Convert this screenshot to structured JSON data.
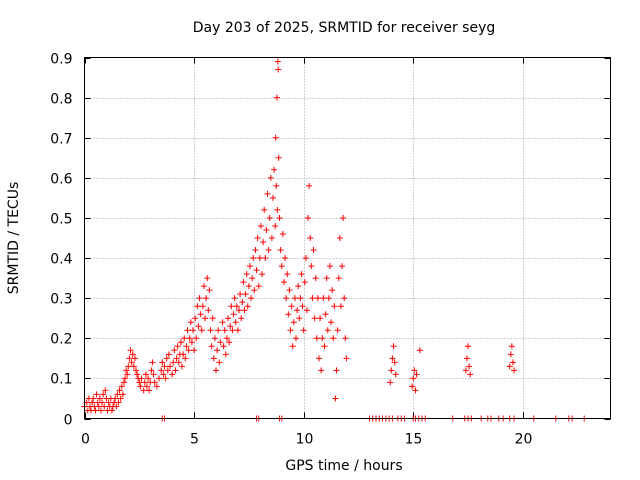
{
  "chart_data": {
    "type": "scatter",
    "title": "Day 203 of 2025, SRMTID for receiver seyg",
    "xlabel": "GPS time / hours",
    "ylabel": "SRMTID / TECUs",
    "xlim": [
      0,
      24
    ],
    "ylim": [
      0,
      0.9
    ],
    "xticks": [
      0,
      5,
      10,
      15,
      20
    ],
    "yticks": [
      0,
      0.1,
      0.2,
      0.3,
      0.4,
      0.5,
      0.6,
      0.7,
      0.8,
      0.9
    ],
    "grid": true,
    "marker": "plus",
    "color": "#ff0000",
    "series": [
      {
        "name": "SRMTID",
        "points": [
          [
            0.0,
            0.03
          ],
          [
            0.1,
            0.04
          ],
          [
            0.15,
            0.02
          ],
          [
            0.2,
            0.05
          ],
          [
            0.25,
            0.03
          ],
          [
            0.3,
            0.02
          ],
          [
            0.35,
            0.04
          ],
          [
            0.4,
            0.05
          ],
          [
            0.45,
            0.03
          ],
          [
            0.5,
            0.02
          ],
          [
            0.55,
            0.06
          ],
          [
            0.6,
            0.04
          ],
          [
            0.65,
            0.03
          ],
          [
            0.7,
            0.05
          ],
          [
            0.75,
            0.02
          ],
          [
            0.8,
            0.04
          ],
          [
            0.85,
            0.06
          ],
          [
            0.9,
            0.03
          ],
          [
            0.95,
            0.07
          ],
          [
            1.0,
            0.05
          ],
          [
            1.05,
            0.02
          ],
          [
            1.1,
            0.04
          ],
          [
            1.15,
            0.03
          ],
          [
            1.2,
            0.05
          ],
          [
            1.25,
            0.02
          ],
          [
            1.3,
            0.03
          ],
          [
            1.35,
            0.04
          ],
          [
            1.4,
            0.05
          ],
          [
            1.45,
            0.03
          ],
          [
            1.5,
            0.06
          ],
          [
            1.55,
            0.04
          ],
          [
            1.6,
            0.07
          ],
          [
            1.65,
            0.05
          ],
          [
            1.7,
            0.08
          ],
          [
            1.75,
            0.06
          ],
          [
            1.8,
            0.09
          ],
          [
            1.85,
            0.1
          ],
          [
            1.9,
            0.12
          ],
          [
            1.95,
            0.11
          ],
          [
            2.0,
            0.13
          ],
          [
            2.05,
            0.15
          ],
          [
            2.1,
            0.17
          ],
          [
            2.15,
            0.14
          ],
          [
            2.2,
            0.16
          ],
          [
            2.25,
            0.13
          ],
          [
            2.3,
            0.15
          ],
          [
            2.35,
            0.12
          ],
          [
            2.4,
            0.11
          ],
          [
            2.45,
            0.1
          ],
          [
            2.5,
            0.09
          ],
          [
            2.55,
            0.08
          ],
          [
            2.6,
            0.1
          ],
          [
            2.7,
            0.07
          ],
          [
            2.75,
            0.09
          ],
          [
            2.8,
            0.11
          ],
          [
            2.85,
            0.08
          ],
          [
            2.9,
            0.1
          ],
          [
            2.95,
            0.07
          ],
          [
            3.0,
            0.09
          ],
          [
            3.05,
            0.12
          ],
          [
            3.1,
            0.14
          ],
          [
            3.15,
            0.11
          ],
          [
            3.2,
            0.09
          ],
          [
            3.3,
            0.08
          ],
          [
            3.4,
            0.1
          ],
          [
            3.5,
            0.12
          ],
          [
            3.55,
            0.14
          ],
          [
            3.6,
            0.11
          ],
          [
            3.65,
            0.13
          ],
          [
            3.7,
            0.1
          ],
          [
            3.75,
            0.15
          ],
          [
            3.8,
            0.12
          ],
          [
            3.85,
            0.16
          ],
          [
            3.9,
            0.13
          ],
          [
            4.0,
            0.11
          ],
          [
            4.05,
            0.14
          ],
          [
            4.1,
            0.17
          ],
          [
            4.15,
            0.12
          ],
          [
            4.2,
            0.15
          ],
          [
            4.25,
            0.18
          ],
          [
            4.3,
            0.14
          ],
          [
            4.35,
            0.16
          ],
          [
            4.4,
            0.19
          ],
          [
            4.45,
            0.13
          ],
          [
            4.5,
            0.16
          ],
          [
            4.55,
            0.2
          ],
          [
            4.6,
            0.15
          ],
          [
            4.65,
            0.18
          ],
          [
            4.7,
            0.22
          ],
          [
            4.75,
            0.17
          ],
          [
            4.8,
            0.2
          ],
          [
            4.85,
            0.24
          ],
          [
            4.9,
            0.19
          ],
          [
            4.95,
            0.22
          ],
          [
            5.0,
            0.17
          ],
          [
            5.05,
            0.25
          ],
          [
            5.1,
            0.2
          ],
          [
            5.15,
            0.28
          ],
          [
            5.2,
            0.23
          ],
          [
            5.25,
            0.3
          ],
          [
            5.3,
            0.26
          ],
          [
            5.35,
            0.22
          ],
          [
            5.4,
            0.28
          ],
          [
            5.45,
            0.33
          ],
          [
            5.5,
            0.25
          ],
          [
            5.55,
            0.3
          ],
          [
            5.6,
            0.35
          ],
          [
            5.65,
            0.27
          ],
          [
            5.7,
            0.32
          ],
          [
            5.75,
            0.22
          ],
          [
            5.8,
            0.18
          ],
          [
            5.85,
            0.25
          ],
          [
            5.9,
            0.15
          ],
          [
            5.95,
            0.2
          ],
          [
            6.0,
            0.12
          ],
          [
            6.05,
            0.17
          ],
          [
            6.1,
            0.22
          ],
          [
            6.15,
            0.14
          ],
          [
            6.2,
            0.19
          ],
          [
            6.3,
            0.24
          ],
          [
            6.35,
            0.18
          ],
          [
            6.4,
            0.22
          ],
          [
            6.45,
            0.16
          ],
          [
            6.5,
            0.2
          ],
          [
            6.55,
            0.25
          ],
          [
            6.6,
            0.19
          ],
          [
            6.65,
            0.23
          ],
          [
            6.7,
            0.28
          ],
          [
            6.75,
            0.22
          ],
          [
            6.8,
            0.26
          ],
          [
            6.85,
            0.3
          ],
          [
            6.9,
            0.24
          ],
          [
            6.95,
            0.28
          ],
          [
            7.0,
            0.22
          ],
          [
            7.05,
            0.27
          ],
          [
            7.1,
            0.31
          ],
          [
            7.15,
            0.25
          ],
          [
            7.2,
            0.29
          ],
          [
            7.25,
            0.34
          ],
          [
            7.3,
            0.27
          ],
          [
            7.35,
            0.31
          ],
          [
            7.4,
            0.36
          ],
          [
            7.45,
            0.28
          ],
          [
            7.5,
            0.33
          ],
          [
            7.55,
            0.38
          ],
          [
            7.6,
            0.3
          ],
          [
            7.65,
            0.35
          ],
          [
            7.7,
            0.4
          ],
          [
            7.75,
            0.32
          ],
          [
            7.8,
            0.42
          ],
          [
            7.85,
            0.37
          ],
          [
            7.9,
            0.45
          ],
          [
            7.95,
            0.33
          ],
          [
            8.0,
            0.4
          ],
          [
            8.05,
            0.48
          ],
          [
            8.1,
            0.36
          ],
          [
            8.15,
            0.44
          ],
          [
            8.2,
            0.52
          ],
          [
            8.25,
            0.4
          ],
          [
            8.3,
            0.47
          ],
          [
            8.35,
            0.56
          ],
          [
            8.4,
            0.42
          ],
          [
            8.45,
            0.5
          ],
          [
            8.5,
            0.6
          ],
          [
            8.55,
            0.45
          ],
          [
            8.6,
            0.55
          ],
          [
            8.65,
            0.62
          ],
          [
            8.7,
            0.48
          ],
          [
            8.72,
            0.7
          ],
          [
            8.75,
            0.58
          ],
          [
            8.78,
            0.8
          ],
          [
            8.8,
            0.52
          ],
          [
            8.82,
            0.89
          ],
          [
            8.84,
            0.87
          ],
          [
            8.86,
            0.65
          ],
          [
            8.9,
            0.5
          ],
          [
            8.95,
            0.42
          ],
          [
            9.0,
            0.38
          ],
          [
            9.05,
            0.46
          ],
          [
            9.1,
            0.34
          ],
          [
            9.15,
            0.4
          ],
          [
            9.2,
            0.3
          ],
          [
            9.25,
            0.36
          ],
          [
            9.3,
            0.26
          ],
          [
            9.35,
            0.32
          ],
          [
            9.4,
            0.22
          ],
          [
            9.45,
            0.28
          ],
          [
            9.5,
            0.18
          ],
          [
            9.55,
            0.24
          ],
          [
            9.6,
            0.3
          ],
          [
            9.65,
            0.2
          ],
          [
            9.7,
            0.27
          ],
          [
            9.75,
            0.33
          ],
          [
            9.8,
            0.25
          ],
          [
            9.85,
            0.3
          ],
          [
            9.9,
            0.36
          ],
          [
            9.95,
            0.28
          ],
          [
            10.0,
            0.22
          ],
          [
            10.05,
            0.34
          ],
          [
            10.1,
            0.4
          ],
          [
            10.15,
            0.27
          ],
          [
            10.2,
            0.5
          ],
          [
            10.25,
            0.58
          ],
          [
            10.3,
            0.45
          ],
          [
            10.35,
            0.38
          ],
          [
            10.4,
            0.3
          ],
          [
            10.45,
            0.42
          ],
          [
            10.5,
            0.25
          ],
          [
            10.55,
            0.35
          ],
          [
            10.6,
            0.2
          ],
          [
            10.65,
            0.3
          ],
          [
            10.7,
            0.15
          ],
          [
            10.75,
            0.25
          ],
          [
            10.8,
            0.12
          ],
          [
            10.85,
            0.2
          ],
          [
            10.9,
            0.3
          ],
          [
            10.95,
            0.18
          ],
          [
            11.0,
            0.26
          ],
          [
            11.05,
            0.35
          ],
          [
            11.1,
            0.22
          ],
          [
            11.15,
            0.3
          ],
          [
            11.2,
            0.38
          ],
          [
            11.25,
            0.24
          ],
          [
            11.3,
            0.32
          ],
          [
            11.35,
            0.2
          ],
          [
            11.4,
            0.28
          ],
          [
            11.45,
            0.05
          ],
          [
            11.5,
            0.12
          ],
          [
            11.55,
            0.22
          ],
          [
            11.6,
            0.35
          ],
          [
            11.65,
            0.45
          ],
          [
            11.7,
            0.28
          ],
          [
            11.75,
            0.38
          ],
          [
            11.8,
            0.5
          ],
          [
            11.85,
            0.3
          ],
          [
            11.9,
            0.2
          ],
          [
            11.95,
            0.15
          ],
          [
            13.95,
            0.09
          ],
          [
            14.0,
            0.12
          ],
          [
            14.05,
            0.15
          ],
          [
            14.1,
            0.18
          ],
          [
            14.15,
            0.14
          ],
          [
            14.2,
            0.11
          ],
          [
            14.95,
            0.08
          ],
          [
            15.0,
            0.1
          ],
          [
            15.05,
            0.12
          ],
          [
            15.1,
            0.07
          ],
          [
            15.15,
            0.11
          ],
          [
            15.3,
            0.17
          ],
          [
            17.4,
            0.12
          ],
          [
            17.45,
            0.15
          ],
          [
            17.5,
            0.18
          ],
          [
            17.55,
            0.13
          ],
          [
            17.6,
            0.11
          ],
          [
            19.4,
            0.13
          ],
          [
            19.45,
            0.16
          ],
          [
            19.5,
            0.18
          ],
          [
            19.55,
            0.14
          ],
          [
            19.6,
            0.12
          ],
          [
            3.55,
            0.0
          ],
          [
            3.65,
            0.0
          ],
          [
            7.85,
            0.0
          ],
          [
            7.95,
            0.0
          ],
          [
            8.9,
            0.0
          ],
          [
            9.0,
            0.0
          ],
          [
            13.0,
            0.0
          ],
          [
            13.15,
            0.0
          ],
          [
            13.3,
            0.0
          ],
          [
            13.45,
            0.0
          ],
          [
            13.6,
            0.0
          ],
          [
            13.75,
            0.0
          ],
          [
            13.9,
            0.0
          ],
          [
            14.05,
            0.0
          ],
          [
            14.3,
            0.0
          ],
          [
            14.45,
            0.0
          ],
          [
            14.6,
            0.0
          ],
          [
            15.0,
            0.0
          ],
          [
            15.1,
            0.0
          ],
          [
            15.25,
            0.0
          ],
          [
            15.4,
            0.0
          ],
          [
            15.55,
            0.0
          ],
          [
            16.8,
            0.0
          ],
          [
            17.35,
            0.0
          ],
          [
            17.5,
            0.0
          ],
          [
            17.65,
            0.0
          ],
          [
            18.1,
            0.0
          ],
          [
            18.4,
            0.0
          ],
          [
            18.55,
            0.0
          ],
          [
            18.9,
            0.0
          ],
          [
            19.1,
            0.0
          ],
          [
            19.4,
            0.0
          ],
          [
            19.6,
            0.0
          ],
          [
            20.5,
            0.0
          ],
          [
            21.5,
            0.0
          ],
          [
            22.1,
            0.0
          ],
          [
            22.25,
            0.0
          ],
          [
            22.8,
            0.0
          ]
        ]
      }
    ]
  }
}
